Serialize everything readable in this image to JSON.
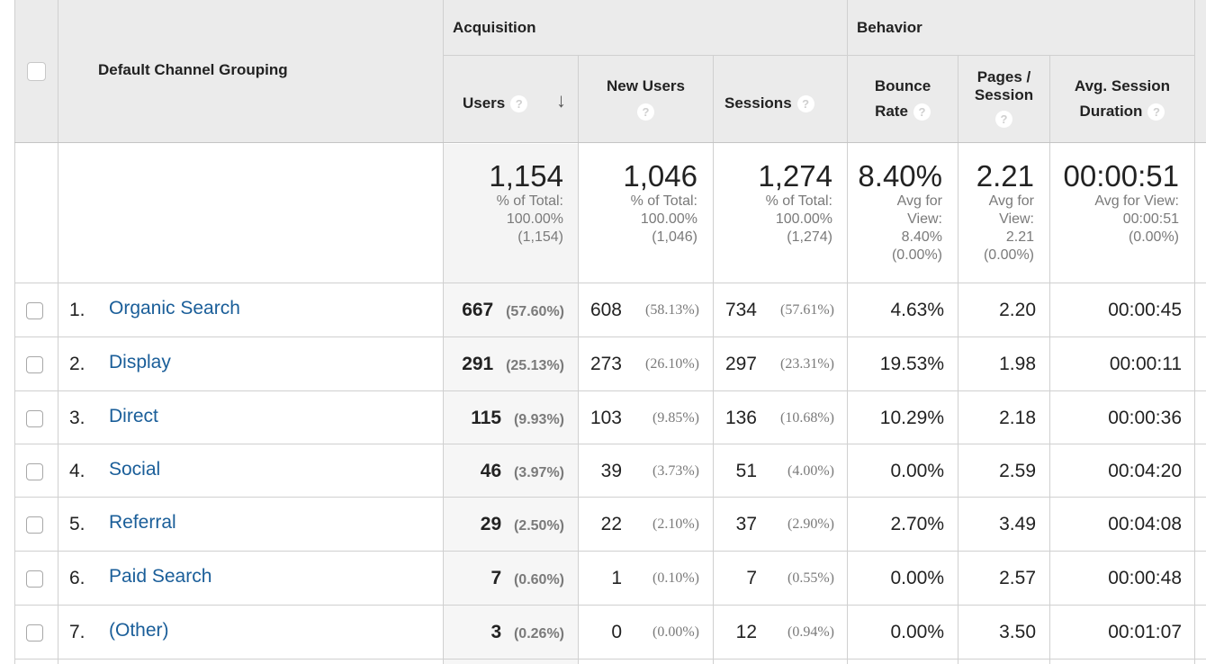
{
  "header": {
    "dimension_label": "Default Channel Grouping",
    "group_acquisition": "Acquisition",
    "group_behavior": "Behavior",
    "columns": {
      "users": "Users",
      "new_users": "New Users",
      "sessions": "Sessions",
      "bounce_rate_line1": "Bounce",
      "bounce_rate_line2": "Rate",
      "pages_line1": "Pages /",
      "pages_line2": "Session",
      "duration_line1": "Avg. Session",
      "duration_line2": "Duration"
    },
    "help_glyph": "?",
    "sort_glyph": "↓"
  },
  "totals": {
    "users": {
      "value": "1,154",
      "l1": "% of Total:",
      "l2": "100.00%",
      "l3": "(1,154)"
    },
    "new_users": {
      "value": "1,046",
      "l1": "% of Total:",
      "l2": "100.00%",
      "l3": "(1,046)"
    },
    "sessions": {
      "value": "1,274",
      "l1": "% of Total:",
      "l2": "100.00%",
      "l3": "(1,274)"
    },
    "bounce_rate": {
      "value": "8.40%",
      "l1": "Avg for",
      "l2": "View:",
      "l3": "8.40%",
      "l4": "(0.00%)"
    },
    "pages": {
      "value": "2.21",
      "l1": "Avg for",
      "l2": "View:",
      "l3": "2.21",
      "l4": "(0.00%)"
    },
    "duration": {
      "value": "00:00:51",
      "l1": "Avg for View:",
      "l2": "00:00:51",
      "l3": "(0.00%)"
    }
  },
  "rows": [
    {
      "index": "1.",
      "channel": "Organic Search",
      "users": "667",
      "users_pct": "(57.60%)",
      "new_users": "608",
      "new_users_pct": "(58.13%)",
      "sessions": "734",
      "sessions_pct": "(57.61%)",
      "bounce_rate": "4.63%",
      "pages": "2.20",
      "duration": "00:00:45"
    },
    {
      "index": "2.",
      "channel": "Display",
      "users": "291",
      "users_pct": "(25.13%)",
      "new_users": "273",
      "new_users_pct": "(26.10%)",
      "sessions": "297",
      "sessions_pct": "(23.31%)",
      "bounce_rate": "19.53%",
      "pages": "1.98",
      "duration": "00:00:11"
    },
    {
      "index": "3.",
      "channel": "Direct",
      "users": "115",
      "users_pct": "(9.93%)",
      "new_users": "103",
      "new_users_pct": "(9.85%)",
      "sessions": "136",
      "sessions_pct": "(10.68%)",
      "bounce_rate": "10.29%",
      "pages": "2.18",
      "duration": "00:00:36"
    },
    {
      "index": "4.",
      "channel": "Social",
      "users": "46",
      "users_pct": "(3.97%)",
      "new_users": "39",
      "new_users_pct": "(3.73%)",
      "sessions": "51",
      "sessions_pct": "(4.00%)",
      "bounce_rate": "0.00%",
      "pages": "2.59",
      "duration": "00:04:20"
    },
    {
      "index": "5.",
      "channel": "Referral",
      "users": "29",
      "users_pct": "(2.50%)",
      "new_users": "22",
      "new_users_pct": "(2.10%)",
      "sessions": "37",
      "sessions_pct": "(2.90%)",
      "bounce_rate": "2.70%",
      "pages": "3.49",
      "duration": "00:04:08"
    },
    {
      "index": "6.",
      "channel": "Paid Search",
      "users": "7",
      "users_pct": "(0.60%)",
      "new_users": "1",
      "new_users_pct": "(0.10%)",
      "sessions": "7",
      "sessions_pct": "(0.55%)",
      "bounce_rate": "0.00%",
      "pages": "2.57",
      "duration": "00:00:48"
    },
    {
      "index": "7.",
      "channel": "(Other)",
      "users": "3",
      "users_pct": "(0.26%)",
      "new_users": "0",
      "new_users_pct": "(0.00%)",
      "sessions": "12",
      "sessions_pct": "(0.94%)",
      "bounce_rate": "0.00%",
      "pages": "3.50",
      "duration": "00:01:07"
    }
  ]
}
